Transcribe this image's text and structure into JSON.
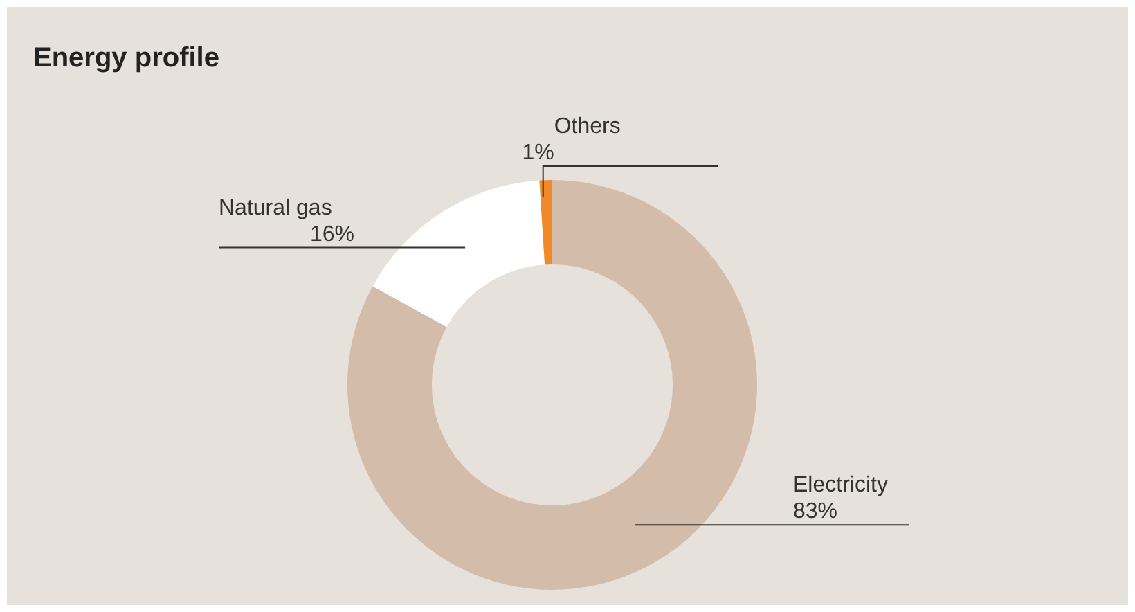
{
  "chart_data": {
    "type": "donut",
    "title": "Energy profile",
    "categories": [
      "Electricity",
      "Natural gas",
      "Others"
    ],
    "values": [
      83,
      16,
      1
    ],
    "value_labels": [
      "83%",
      "16%",
      "1%"
    ],
    "colors": [
      "#d4bcaa",
      "#ffffff",
      "#f08a28"
    ]
  }
}
